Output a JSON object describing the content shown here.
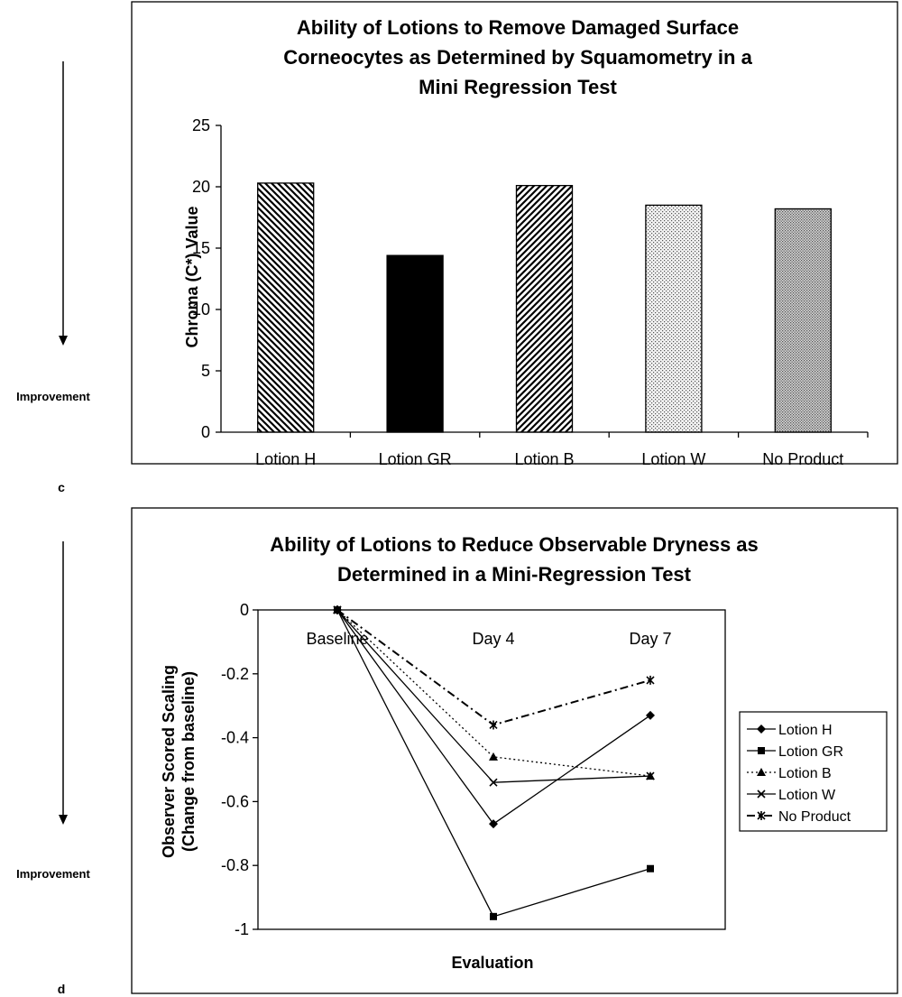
{
  "side_labels": {
    "top": "Improvement",
    "bottom": "Improvement"
  },
  "panel_labels": {
    "c": "c",
    "d": "d"
  },
  "chart_data": [
    {
      "type": "bar",
      "title_lines": [
        "Ability of Lotions to Remove Damaged Surface",
        "Corneocytes as Determined by Squamometry in a",
        "Mini Regression Test"
      ],
      "xlabel": "",
      "ylabel": "Chroma (C*) Value",
      "ylim": [
        0,
        25
      ],
      "yticks": [
        "0",
        "5",
        "10",
        "15",
        "20",
        "25"
      ],
      "categories": [
        "Lotion H",
        "Lotion GR",
        "Lotion B",
        "Lotion W",
        "No Product"
      ],
      "values": [
        20.3,
        14.4,
        20.1,
        18.5,
        18.2
      ],
      "fills": [
        "hatch-back",
        "solid-black",
        "hatch-forward",
        "dots-light",
        "dots-dense"
      ],
      "grid": false,
      "legend": "none"
    },
    {
      "type": "line",
      "title_lines": [
        "Ability of Lotions to Reduce Observable Dryness as",
        "Determined in a Mini-Regression Test"
      ],
      "xlabel": "Evaluation",
      "ylabel_lines": [
        "Observer Scored Scaling",
        "(Change from baseline)"
      ],
      "ylim": [
        -1,
        0
      ],
      "yticks": [
        "0",
        "-0.2",
        "-0.4",
        "-0.6",
        "-0.8",
        "-1"
      ],
      "categories": [
        "Baseline",
        "Day 4",
        "Day 7"
      ],
      "series": [
        {
          "name": "Lotion H",
          "values": [
            0,
            -0.67,
            -0.33
          ],
          "marker": "diamond",
          "dash": "solid"
        },
        {
          "name": "Lotion GR",
          "values": [
            0,
            -0.96,
            -0.81
          ],
          "marker": "square",
          "dash": "solid"
        },
        {
          "name": "Lotion B",
          "values": [
            0,
            -0.46,
            -0.52
          ],
          "marker": "triangle",
          "dash": "dotted"
        },
        {
          "name": "Lotion W",
          "values": [
            0,
            -0.54,
            -0.52
          ],
          "marker": "x",
          "dash": "solid"
        },
        {
          "name": "No Product",
          "values": [
            0,
            -0.36,
            -0.22
          ],
          "marker": "star",
          "dash": "dashdot"
        }
      ],
      "grid": false,
      "legend": "right"
    }
  ]
}
